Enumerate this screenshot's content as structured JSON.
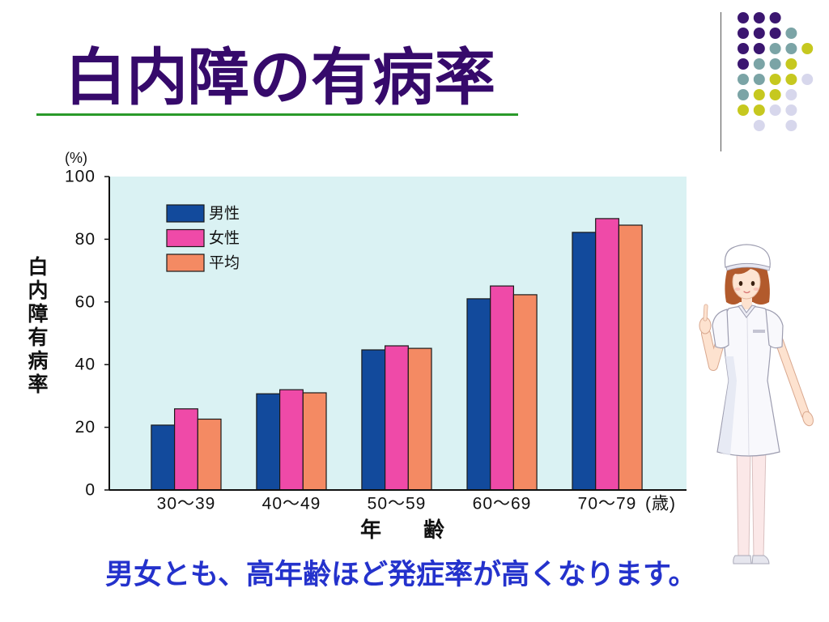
{
  "slide": {
    "title": "白内障の有病率",
    "caption": "男女とも、高年齢ほど発症率が高くなります。",
    "title_color": "#360a6b",
    "rule_color": "#2a9a2a",
    "caption_color": "#2432cc"
  },
  "decoration": {
    "dot_colors": {
      "purple": "#3b1670",
      "teal": "#7ba4a6",
      "yellow": "#c6c81f",
      "lavender": "#d7d7ec"
    }
  },
  "illustration": {
    "icon": "nurse-illustration"
  },
  "chart_data": {
    "type": "bar",
    "categories": [
      "30～39",
      "40～49",
      "50～59",
      "60～69",
      "70～79"
    ],
    "series": [
      {
        "name": "男性",
        "color": "#124a9c",
        "values": [
          20.7,
          30.7,
          44.7,
          61.0,
          82.2
        ]
      },
      {
        "name": "女性",
        "color": "#ef4aa8",
        "values": [
          25.9,
          32.0,
          46.0,
          65.1,
          86.6
        ]
      },
      {
        "name": "平均",
        "color": "#f48a63",
        "values": [
          22.6,
          31.0,
          45.2,
          62.3,
          84.5
        ]
      }
    ],
    "xlabel": "年　　齢",
    "x_unit": "(歳)",
    "ylabel": "白内障有病率",
    "y_unit": "(%)",
    "ylim": [
      0,
      100
    ],
    "yticks": [
      0,
      20,
      40,
      60,
      80,
      100
    ],
    "grid": false,
    "legend_position": "top-left",
    "plot_background": "#daf2f3"
  }
}
